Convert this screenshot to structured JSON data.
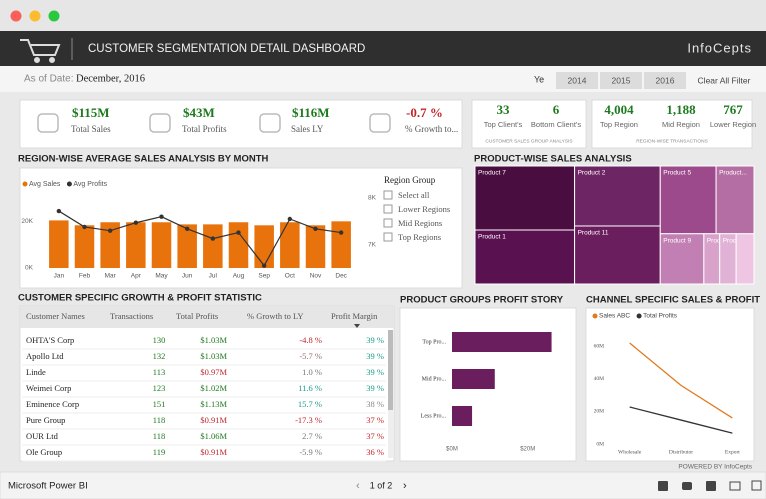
{
  "header": {
    "title": "CUSTOMER SEGMENTATION DETAIL DASHBOARD",
    "brand": "InfoCepts"
  },
  "filters": {
    "as_of_label": "As of Date:",
    "as_of_value": "December, 2016",
    "year_label": "Ye",
    "years": [
      "2014",
      "2015",
      "2016"
    ],
    "clear": "Clear All Filter"
  },
  "kpis": [
    {
      "value": "$115M",
      "label": "Total Sales",
      "color": "#1e7a1e"
    },
    {
      "value": "$43M",
      "label": "Total Profits",
      "color": "#1e7a1e"
    },
    {
      "value": "$116M",
      "label": "Sales LY",
      "color": "#1e7a1e"
    },
    {
      "value": "-0.7 %",
      "label": "% Growth to...",
      "color": "#c0262c"
    }
  ],
  "client_card": {
    "items": [
      {
        "value": "33",
        "label": "Top Client's"
      },
      {
        "value": "6",
        "label": "Bottom Client's"
      }
    ],
    "caption": "CUSTOMER SALES GROUP ANALYSIS"
  },
  "region_card": {
    "items": [
      {
        "value": "4,004",
        "label": "Top Region"
      },
      {
        "value": "1,188",
        "label": "Mid Region"
      },
      {
        "value": "767",
        "label": "Lower Region"
      }
    ],
    "caption": "REGION-WISE TRANSACTIONS"
  },
  "region_slicer": {
    "title": "Region Group",
    "options": [
      "Select all",
      "Lower Regions",
      "Mid Regions",
      "Top Regions"
    ]
  },
  "table": {
    "title": "CUSTOMER SPECIFIC GROWTH & PROFIT STATISTIC",
    "columns": [
      "Customer Names",
      "Transactions",
      "Total Profits",
      "% Growth to LY",
      "Profit Margin"
    ],
    "rows": [
      [
        "OHTA'S Corp",
        "130",
        "$1.03M",
        "-4.8 %",
        "39 %"
      ],
      [
        "Apollo Ltd",
        "132",
        "$1.03M",
        "-5.7 %",
        "39 %"
      ],
      [
        "Linde",
        "113",
        "$0.97M",
        "1.0 %",
        "39 %"
      ],
      [
        "Weimei Corp",
        "123",
        "$1.02M",
        "11.6 %",
        "39 %"
      ],
      [
        "Eminence Corp",
        "151",
        "$1.13M",
        "15.7 %",
        "38 %"
      ],
      [
        "Pure Group",
        "118",
        "$0.91M",
        "-17.3 %",
        "37 %"
      ],
      [
        "OUR Ltd",
        "118",
        "$1.06M",
        "2.7 %",
        "37 %"
      ],
      [
        "Ole Group",
        "119",
        "$0.91M",
        "-5.9 %",
        "36 %"
      ]
    ],
    "cell_colors": [
      [
        "#222",
        "#1e7a1e",
        "#1e7a1e",
        "#c0262c",
        "#1a9a8a"
      ],
      [
        "#222",
        "#1e7a1e",
        "#1e7a1e",
        "#9a6b6b",
        "#1a9a8a"
      ],
      [
        "#222",
        "#1e7a1e",
        "#c0262c",
        "#777",
        "#1a9a8a"
      ],
      [
        "#222",
        "#1e7a1e",
        "#1e7a1e",
        "#1a9a8a",
        "#1a9a8a"
      ],
      [
        "#222",
        "#1e7a1e",
        "#1e7a1e",
        "#1a9a8a",
        "#888"
      ],
      [
        "#222",
        "#1e7a1e",
        "#c0262c",
        "#c0262c",
        "#c0262c"
      ],
      [
        "#222",
        "#1e7a1e",
        "#1e7a1e",
        "#777",
        "#c0262c"
      ],
      [
        "#222",
        "#1e7a1e",
        "#c0262c",
        "#777",
        "#c0262c"
      ]
    ]
  },
  "chart_data": [
    {
      "type": "combo",
      "title": "REGION-WISE AVERAGE SALES ANALYSIS BY MONTH",
      "categories": [
        "Jan",
        "Feb",
        "Mar",
        "Apr",
        "May",
        "Jun",
        "Jul",
        "Aug",
        "Sep",
        "Oct",
        "Nov",
        "Dec"
      ],
      "series": [
        {
          "name": "Avg Sales",
          "color": "#e8730c",
          "values": [
            20400,
            18300,
            19600,
            19600,
            19600,
            18700,
            18700,
            19600,
            18300,
            19600,
            18300,
            20000
          ]
        },
        {
          "name": "Avg Profits",
          "color": "#333333",
          "axis": "y2",
          "values": [
            7720,
            7380,
            7300,
            7470,
            7600,
            7340,
            7130,
            7260,
            6550,
            7550,
            7340,
            7260
          ]
        }
      ],
      "ylim": [
        0,
        30000
      ],
      "yticks": [
        {
          "value": 0,
          "label": "0K"
        },
        {
          "value": 20000,
          "label": "20K"
        }
      ],
      "y2lim": [
        6500,
        8000
      ],
      "y2ticks": [
        {
          "value": 8000,
          "label": "8K"
        },
        {
          "value": 7000,
          "label": "7K"
        }
      ]
    },
    {
      "type": "treemap",
      "title": "PRODUCT-WISE SALES ANALYSIS",
      "columns": [
        [
          [
            {
              "name": "Product 7",
              "value": 6400,
              "color": "#4a0d3f"
            }
          ],
          [
            {
              "name": "Product 1",
              "value": 5400,
              "color": "#5a1150"
            }
          ]
        ],
        [
          [
            {
              "name": "Product 2",
              "value": 5160,
              "color": "#6e2563"
            }
          ],
          [
            {
              "name": "Product 11",
              "value": 4990,
              "color": "#6a1e5e"
            }
          ]
        ],
        [
          [
            {
              "name": "Product 5",
              "value": 3800,
              "color": "#9c4a8c"
            },
            {
              "name": "Product...",
              "value": 2580,
              "color": "#b46ea4"
            }
          ],
          [
            {
              "name": "Product 9",
              "value": 2200,
              "color": "#c27fb3"
            },
            {
              "name": "Produ...",
              "value": 800,
              "color": "#d8a2cb"
            },
            {
              "name": "Produ...",
              "value": 830,
              "color": "#e0b2d5"
            },
            {
              "name": null,
              "value": 900,
              "color": "#eec5e3"
            }
          ]
        ]
      ]
    },
    {
      "type": "hbar",
      "title": "PRODUCT GROUPS PROFIT STORY",
      "categories": [
        "Top Pro...",
        "Mid Pro...",
        "Less Pro..."
      ],
      "values": [
        26.3,
        11.3,
        5.3
      ],
      "color": "#6b1e5e",
      "xlim": [
        0,
        28
      ],
      "xticks": [
        {
          "value": 0,
          "label": "$0M"
        },
        {
          "value": 20,
          "label": "$20M"
        }
      ]
    },
    {
      "type": "line",
      "title": "CHANNEL SPECIFIC SALES & PROFIT",
      "categories": [
        "Wholesale",
        "Distributor",
        "Export"
      ],
      "series": [
        {
          "name": "Sales ABC",
          "color": "#e07b1f",
          "values": [
            62,
            36,
            16
          ]
        },
        {
          "name": "Total Profits",
          "color": "#333333",
          "values": [
            22.7,
            14.7,
            6.7
          ]
        }
      ],
      "ylim": [
        0,
        70
      ],
      "yticks": [
        {
          "value": 0,
          "label": "0M"
        },
        {
          "value": 20,
          "label": "20M"
        },
        {
          "value": 40,
          "label": "40M"
        },
        {
          "value": 60,
          "label": "60M"
        }
      ]
    }
  ],
  "footer": {
    "powered": "POWERED BY InfoCepts",
    "app": "Microsoft Power BI",
    "page": "1 of 2"
  }
}
